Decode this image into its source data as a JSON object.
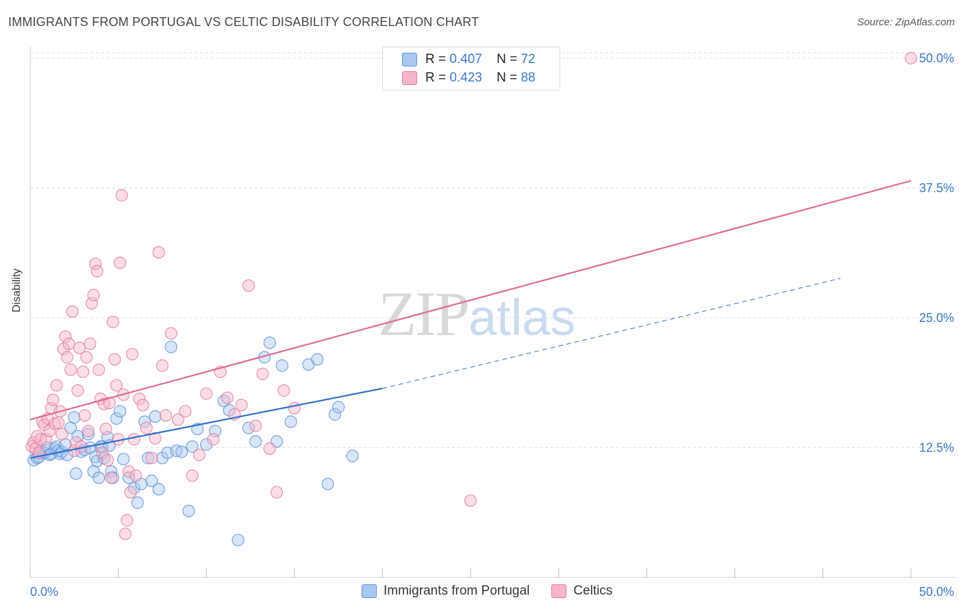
{
  "title": "IMMIGRANTS FROM PORTUGAL VS CELTIC DISABILITY CORRELATION CHART",
  "source": "Source: ZipAtlas.com",
  "watermark": {
    "zip": "ZIP",
    "atlas": "atlas"
  },
  "colors": {
    "blue_fill": "#a9c8f0",
    "blue_stroke": "#5d8fd6",
    "blue_line": "#2f6fcc",
    "pink_fill": "#f5b6c9",
    "pink_stroke": "#e07a9b",
    "pink_line": "#e06a93",
    "tick_label": "#3a78c8",
    "grid": "#dddddd"
  },
  "legend": {
    "r_label": "R =",
    "n_label": "N =",
    "series": [
      {
        "r": "0.407",
        "n": "72"
      },
      {
        "r": "0.423",
        "n": "88"
      }
    ]
  },
  "bottom_legend": [
    "Immigrants from Portugal",
    "Celtics"
  ],
  "chart_data": {
    "type": "scatter",
    "title": "IMMIGRANTS FROM PORTUGAL VS CELTIC DISABILITY CORRELATION CHART",
    "xlabel": "",
    "ylabel": "Disability",
    "xlim": [
      0,
      50
    ],
    "ylim": [
      0,
      50
    ],
    "x_tick_labels": [
      "0.0%",
      "50.0%"
    ],
    "y_ticks": [
      12.5,
      25.0,
      37.5,
      50.0
    ],
    "y_tick_labels": [
      "12.5%",
      "25.0%",
      "37.5%",
      "50.0%"
    ],
    "legend_position": "top-center",
    "series": [
      {
        "name": "Immigrants from Portugal",
        "r": 0.407,
        "n": 72,
        "trend": {
          "x0": 0,
          "y0": 11.5,
          "x1": 20,
          "y1": 18.2,
          "dash_to_x": 46,
          "dash_to_y": 28.8
        },
        "points": [
          [
            0.2,
            11.3
          ],
          [
            0.4,
            11.5
          ],
          [
            0.5,
            11.6
          ],
          [
            0.6,
            12.2
          ],
          [
            0.8,
            12.0
          ],
          [
            1.0,
            12.5
          ],
          [
            1.1,
            11.8
          ],
          [
            1.2,
            11.9
          ],
          [
            1.4,
            12.4
          ],
          [
            1.5,
            12.6
          ],
          [
            1.6,
            12.2
          ],
          [
            1.7,
            11.9
          ],
          [
            1.8,
            12.1
          ],
          [
            2.0,
            12.8
          ],
          [
            2.1,
            11.8
          ],
          [
            2.3,
            14.4
          ],
          [
            2.5,
            15.4
          ],
          [
            2.6,
            10.0
          ],
          [
            2.7,
            13.6
          ],
          [
            2.9,
            12.1
          ],
          [
            3.1,
            12.3
          ],
          [
            3.3,
            13.8
          ],
          [
            3.4,
            12.5
          ],
          [
            3.6,
            10.2
          ],
          [
            3.7,
            11.6
          ],
          [
            3.8,
            11.2
          ],
          [
            3.9,
            9.6
          ],
          [
            4.0,
            12.6
          ],
          [
            4.1,
            12.6
          ],
          [
            4.2,
            11.5
          ],
          [
            4.4,
            13.5
          ],
          [
            4.5,
            12.7
          ],
          [
            4.6,
            10.2
          ],
          [
            4.7,
            9.6
          ],
          [
            4.9,
            15.3
          ],
          [
            5.1,
            16.0
          ],
          [
            5.3,
            11.4
          ],
          [
            5.6,
            9.6
          ],
          [
            5.9,
            8.6
          ],
          [
            6.1,
            7.2
          ],
          [
            6.3,
            9.0
          ],
          [
            6.5,
            15.0
          ],
          [
            6.7,
            11.5
          ],
          [
            6.9,
            9.3
          ],
          [
            7.1,
            15.5
          ],
          [
            7.3,
            8.5
          ],
          [
            7.5,
            11.5
          ],
          [
            7.8,
            12.0
          ],
          [
            8.0,
            22.2
          ],
          [
            8.3,
            12.2
          ],
          [
            8.6,
            12.1
          ],
          [
            9.0,
            6.4
          ],
          [
            9.2,
            12.6
          ],
          [
            9.5,
            14.3
          ],
          [
            10.0,
            12.8
          ],
          [
            10.5,
            14.1
          ],
          [
            11.0,
            17.0
          ],
          [
            11.3,
            16.1
          ],
          [
            11.8,
            3.6
          ],
          [
            12.4,
            14.4
          ],
          [
            12.8,
            13.1
          ],
          [
            13.3,
            21.2
          ],
          [
            13.6,
            22.6
          ],
          [
            14.0,
            13.1
          ],
          [
            14.3,
            20.4
          ],
          [
            14.8,
            15.0
          ],
          [
            15.8,
            20.5
          ],
          [
            16.3,
            21.0
          ],
          [
            17.3,
            15.7
          ],
          [
            17.5,
            16.4
          ],
          [
            18.3,
            11.7
          ],
          [
            16.9,
            9.0
          ]
        ]
      },
      {
        "name": "Celtics",
        "r": 0.423,
        "n": 88,
        "trend": {
          "x0": 0,
          "y0": 15.2,
          "x1": 50,
          "y1": 38.2
        },
        "points": [
          [
            0.1,
            12.6
          ],
          [
            0.2,
            13.0
          ],
          [
            0.3,
            12.4
          ],
          [
            0.4,
            13.6
          ],
          [
            0.5,
            12.0
          ],
          [
            0.6,
            13.3
          ],
          [
            0.7,
            15.0
          ],
          [
            0.8,
            14.7
          ],
          [
            0.9,
            13.3
          ],
          [
            1.0,
            15.3
          ],
          [
            1.1,
            14.1
          ],
          [
            1.2,
            16.3
          ],
          [
            1.3,
            17.1
          ],
          [
            1.4,
            14.8
          ],
          [
            1.5,
            18.5
          ],
          [
            1.6,
            14.9
          ],
          [
            1.7,
            16.0
          ],
          [
            1.8,
            13.8
          ],
          [
            1.9,
            22.0
          ],
          [
            2.0,
            23.2
          ],
          [
            2.1,
            21.2
          ],
          [
            2.2,
            22.5
          ],
          [
            2.3,
            20.0
          ],
          [
            2.4,
            25.6
          ],
          [
            2.5,
            12.2
          ],
          [
            2.6,
            13.0
          ],
          [
            2.7,
            18.0
          ],
          [
            2.8,
            22.1
          ],
          [
            2.9,
            12.6
          ],
          [
            3.0,
            19.8
          ],
          [
            3.1,
            15.6
          ],
          [
            3.2,
            21.2
          ],
          [
            3.3,
            14.1
          ],
          [
            3.4,
            22.5
          ],
          [
            3.5,
            26.4
          ],
          [
            3.6,
            27.2
          ],
          [
            3.7,
            30.2
          ],
          [
            3.8,
            29.5
          ],
          [
            3.9,
            20.0
          ],
          [
            4.0,
            17.2
          ],
          [
            4.1,
            12.0
          ],
          [
            4.2,
            16.7
          ],
          [
            4.3,
            14.3
          ],
          [
            4.4,
            11.3
          ],
          [
            4.5,
            16.8
          ],
          [
            4.6,
            9.6
          ],
          [
            4.7,
            24.6
          ],
          [
            4.8,
            21.0
          ],
          [
            4.9,
            18.5
          ],
          [
            5.0,
            13.3
          ],
          [
            5.1,
            30.3
          ],
          [
            5.2,
            36.8
          ],
          [
            5.3,
            17.6
          ],
          [
            5.4,
            4.2
          ],
          [
            5.5,
            5.5
          ],
          [
            5.6,
            10.2
          ],
          [
            5.7,
            8.2
          ],
          [
            5.8,
            21.5
          ],
          [
            5.9,
            13.3
          ],
          [
            6.0,
            9.8
          ],
          [
            6.2,
            17.2
          ],
          [
            6.4,
            16.6
          ],
          [
            6.6,
            14.4
          ],
          [
            6.9,
            11.5
          ],
          [
            7.1,
            13.4
          ],
          [
            7.3,
            31.3
          ],
          [
            7.5,
            20.4
          ],
          [
            7.7,
            15.6
          ],
          [
            8.0,
            23.5
          ],
          [
            8.4,
            15.2
          ],
          [
            8.8,
            16.0
          ],
          [
            9.2,
            9.8
          ],
          [
            9.6,
            11.8
          ],
          [
            10.0,
            17.7
          ],
          [
            10.4,
            13.3
          ],
          [
            10.8,
            19.8
          ],
          [
            11.2,
            17.3
          ],
          [
            11.6,
            15.7
          ],
          [
            12.0,
            16.6
          ],
          [
            12.4,
            28.1
          ],
          [
            12.8,
            14.6
          ],
          [
            13.2,
            19.6
          ],
          [
            13.6,
            12.4
          ],
          [
            14.0,
            8.2
          ],
          [
            14.4,
            18.0
          ],
          [
            15.0,
            16.3
          ],
          [
            25.0,
            7.4
          ],
          [
            50.0,
            50.0
          ]
        ]
      }
    ]
  }
}
